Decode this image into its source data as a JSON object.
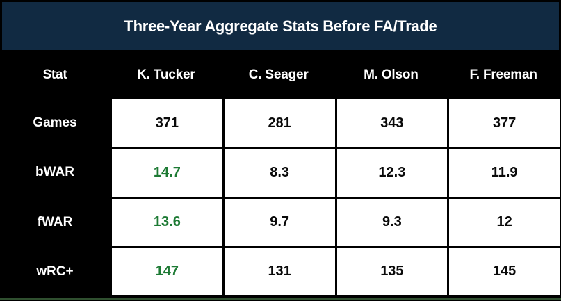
{
  "title": "Three-Year Aggregate Stats Before FA/Trade",
  "colors": {
    "title_bg": "#112A42",
    "highlight_green": "#1D7A34",
    "accent_line": "#2F4F2F",
    "table_bg": "#000000",
    "cell_bg": "#FFFFFF"
  },
  "table": {
    "columns": [
      "Stat",
      "K. Tucker",
      "C. Seager",
      "M. Olson",
      "F. Freeman"
    ],
    "rows": [
      {
        "label": "Games",
        "values": [
          "371",
          "281",
          "343",
          "377"
        ],
        "highlight": [
          false,
          false,
          false,
          false
        ]
      },
      {
        "label": "bWAR",
        "values": [
          "14.7",
          "8.3",
          "12.3",
          "11.9"
        ],
        "highlight": [
          true,
          false,
          false,
          false
        ]
      },
      {
        "label": "fWAR",
        "values": [
          "13.6",
          "9.7",
          "9.3",
          "12"
        ],
        "highlight": [
          true,
          false,
          false,
          false
        ]
      },
      {
        "label": "wRC+",
        "values": [
          "147",
          "131",
          "135",
          "145"
        ],
        "highlight": [
          true,
          false,
          false,
          false
        ]
      }
    ]
  },
  "chart_data": {
    "type": "table",
    "title": "Three-Year Aggregate Stats Before FA/Trade",
    "columns": [
      "Stat",
      "K. Tucker",
      "C. Seager",
      "M. Olson",
      "F. Freeman"
    ],
    "rows": [
      {
        "stat": "Games",
        "K. Tucker": 371,
        "C. Seager": 281,
        "M. Olson": 343,
        "F. Freeman": 377
      },
      {
        "stat": "bWAR",
        "K. Tucker": 14.7,
        "C. Seager": 8.3,
        "M. Olson": 12.3,
        "F. Freeman": 11.9
      },
      {
        "stat": "fWAR",
        "K. Tucker": 13.6,
        "C. Seager": 9.7,
        "M. Olson": 9.3,
        "F. Freeman": 12
      },
      {
        "stat": "wRC+",
        "K. Tucker": 147,
        "C. Seager": 131,
        "M. Olson": 135,
        "F. Freeman": 145
      }
    ],
    "notes": "K. Tucker values for bWAR, fWAR and wRC+ are highlighted in green"
  }
}
